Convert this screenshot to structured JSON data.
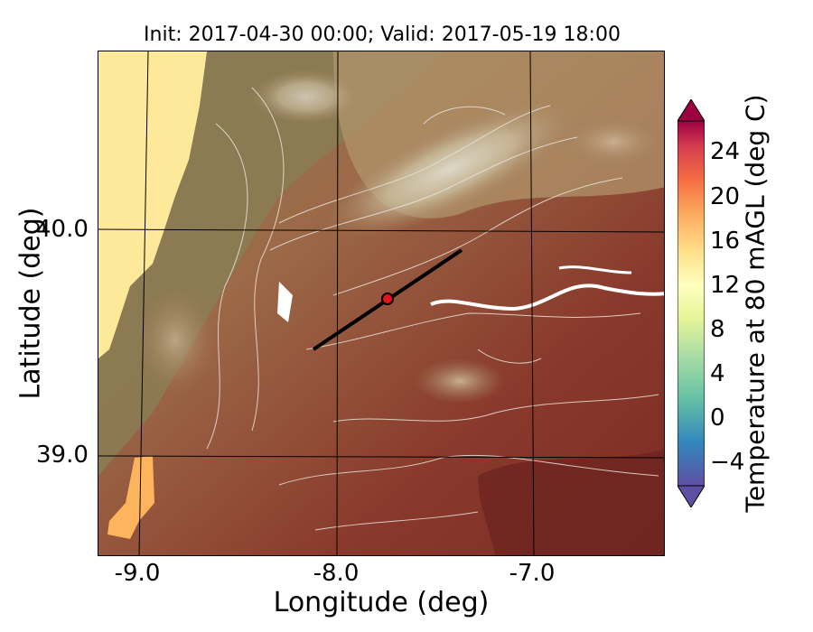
{
  "title": "Init: 2017-04-30 00:00; Valid: 2017-05-19 18:00",
  "map": {
    "xlabel": "Longitude (deg)",
    "ylabel": "Latitude (deg)",
    "x_ticks": [
      "-9.0",
      "-8.0",
      "-7.0"
    ],
    "y_ticks": [
      "40.0",
      "39.0"
    ],
    "ocean_color": "#fee99a",
    "land_color_low": "#7c2a22",
    "land_color_high": "#c9b68c",
    "contour_color": "#e8e4dc",
    "transect_color": "#000000",
    "marker_color": "#e8141c"
  },
  "colorbar": {
    "label": "Temperature at 80 mAGL (deg C)",
    "ticks": [
      "24",
      "20",
      "16",
      "12",
      "8",
      "4",
      "0",
      "−4"
    ],
    "min": -6,
    "max": 28,
    "extend": "both"
  }
}
